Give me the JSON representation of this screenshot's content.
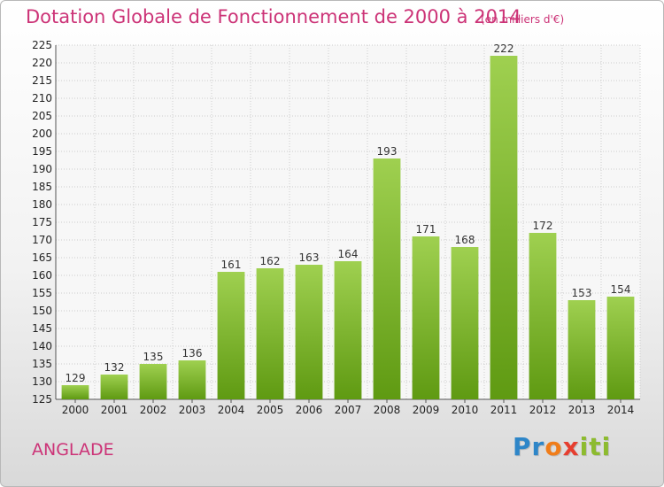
{
  "header": {
    "title": "Dotation Globale de Fonctionnement de 2000 à 2014",
    "unit": "(en milliers d'€)"
  },
  "footer": {
    "town": "ANGLADE",
    "logo_parts": [
      "Pr",
      "o",
      "x",
      "iti"
    ]
  },
  "colors": {
    "bar_top": "#9fd050",
    "bar_bottom": "#5f9a12",
    "title": "#cc3377",
    "grid": "#cccccc",
    "plot_background": "#f7f7f7"
  },
  "chart_data": {
    "type": "bar",
    "title": "Dotation Globale de Fonctionnement de 2000 à 2014",
    "subtitle": "(en milliers d'€)",
    "xlabel": "",
    "ylabel": "",
    "categories": [
      "2000",
      "2001",
      "2002",
      "2003",
      "2004",
      "2005",
      "2006",
      "2007",
      "2008",
      "2009",
      "2010",
      "2011",
      "2012",
      "2013",
      "2014"
    ],
    "values": [
      129,
      132,
      135,
      136,
      161,
      162,
      163,
      164,
      193,
      171,
      168,
      222,
      172,
      153,
      154
    ],
    "ylim": [
      125,
      225
    ],
    "ytick_step": 5,
    "grid": true,
    "legend": "none"
  }
}
